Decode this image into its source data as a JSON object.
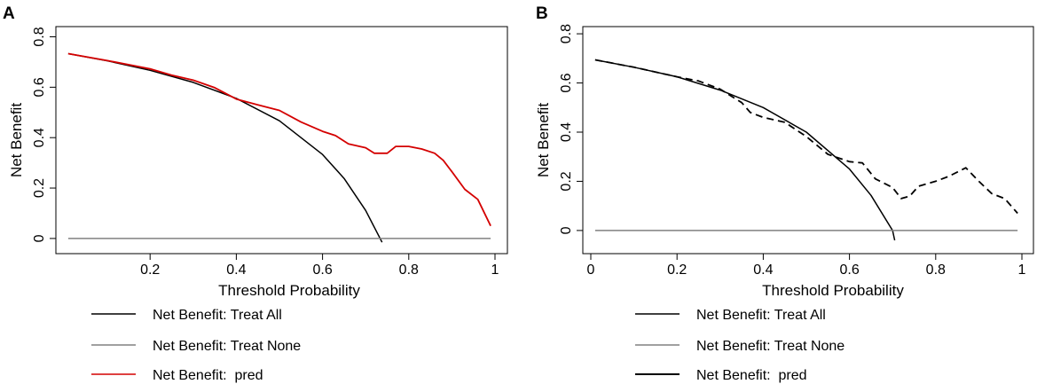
{
  "figure": {
    "panel_a_label": "A",
    "panel_b_label": "B"
  },
  "chart_data": [
    {
      "type": "line",
      "panel": "A",
      "xlabel": "Threshold Probability",
      "ylabel": "Net Benefit",
      "xlim": [
        0,
        1
      ],
      "ylim": [
        -0.03,
        0.82
      ],
      "xticks": [
        0.2,
        0.4,
        0.6,
        0.8,
        1
      ],
      "xtick_labels": [
        "0.2",
        "0.4",
        "0.6",
        "0.8",
        "1"
      ],
      "yticks": [
        0,
        0.2,
        0.4,
        0.6,
        0.8
      ],
      "ytick_labels": [
        "0",
        "0.2",
        "0.4",
        "0.6",
        "0.8"
      ],
      "series": [
        {
          "name": "Net Benefit: Treat All",
          "color": "#000000",
          "dash": "",
          "x": [
            0.01,
            0.1,
            0.2,
            0.3,
            0.4,
            0.5,
            0.6,
            0.65,
            0.7,
            0.738
          ],
          "y": [
            0.733,
            0.705,
            0.667,
            0.619,
            0.556,
            0.467,
            0.333,
            0.238,
            0.111,
            -0.015
          ]
        },
        {
          "name": "Net Benefit: Treat None",
          "color": "#808080",
          "dash": "",
          "x": [
            0.01,
            0.99
          ],
          "y": [
            0,
            0
          ]
        },
        {
          "name": "Net Benefit:  pred",
          "color": "#d40000",
          "dash": "",
          "x": [
            0.01,
            0.1,
            0.2,
            0.25,
            0.3,
            0.35,
            0.4,
            0.45,
            0.5,
            0.55,
            0.6,
            0.63,
            0.66,
            0.7,
            0.72,
            0.75,
            0.77,
            0.8,
            0.83,
            0.86,
            0.88,
            0.9,
            0.93,
            0.96,
            0.99
          ],
          "y": [
            0.733,
            0.706,
            0.673,
            0.648,
            0.628,
            0.598,
            0.553,
            0.53,
            0.508,
            0.462,
            0.425,
            0.408,
            0.375,
            0.36,
            0.338,
            0.338,
            0.365,
            0.365,
            0.355,
            0.338,
            0.31,
            0.265,
            0.195,
            0.155,
            0.05
          ]
        }
      ]
    },
    {
      "type": "line",
      "panel": "B",
      "xlabel": "Threshold Probability",
      "ylabel": "Net Benefit",
      "xlim": [
        0,
        1
      ],
      "ylim": [
        -0.03,
        0.82
      ],
      "xticks": [
        0,
        0.2,
        0.4,
        0.6,
        0.8,
        1
      ],
      "xtick_labels": [
        "0",
        "0.2",
        "0.4",
        "0.6",
        "0.8",
        "1"
      ],
      "yticks": [
        0,
        0.2,
        0.4,
        0.6,
        0.8
      ],
      "ytick_labels": [
        "0",
        "0.2",
        "0.4",
        "0.6",
        "0.8"
      ],
      "series": [
        {
          "name": "Net Benefit: Treat All",
          "color": "#000000",
          "dash": "",
          "x": [
            0.01,
            0.1,
            0.2,
            0.3,
            0.4,
            0.5,
            0.6,
            0.65,
            0.7,
            0.705
          ],
          "y": [
            0.694,
            0.664,
            0.625,
            0.571,
            0.5,
            0.4,
            0.25,
            0.143,
            0.0,
            -0.04
          ]
        },
        {
          "name": "Net Benefit: Treat None",
          "color": "#808080",
          "dash": "",
          "x": [
            0.01,
            0.99
          ],
          "y": [
            0,
            0
          ]
        },
        {
          "name": "Net Benefit:  pred",
          "color": "#000000",
          "dash": "8,5",
          "x": [
            0.01,
            0.1,
            0.2,
            0.25,
            0.3,
            0.35,
            0.37,
            0.4,
            0.45,
            0.5,
            0.55,
            0.6,
            0.63,
            0.66,
            0.7,
            0.72,
            0.74,
            0.76,
            0.8,
            0.83,
            0.87,
            0.9,
            0.93,
            0.96,
            0.99
          ],
          "y": [
            0.694,
            0.664,
            0.625,
            0.608,
            0.575,
            0.52,
            0.48,
            0.46,
            0.44,
            0.382,
            0.31,
            0.28,
            0.275,
            0.21,
            0.175,
            0.13,
            0.14,
            0.18,
            0.2,
            0.22,
            0.255,
            0.2,
            0.15,
            0.13,
            0.07
          ]
        }
      ]
    }
  ]
}
